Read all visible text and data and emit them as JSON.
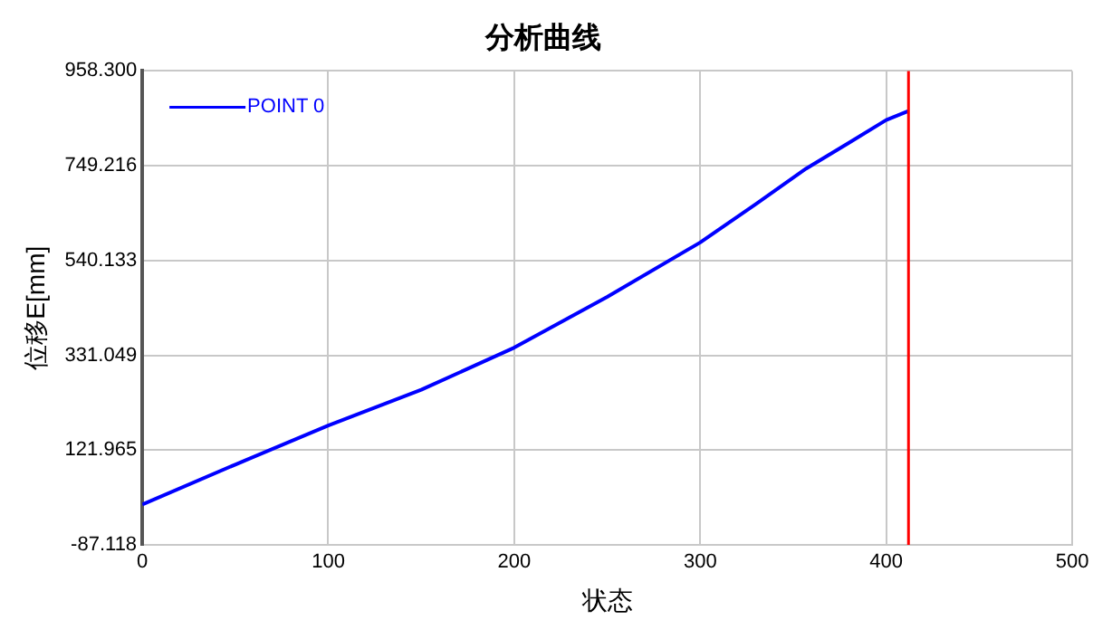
{
  "chart_data": {
    "type": "line",
    "title": "分析曲线",
    "xlabel": "状态",
    "ylabel": "位移E[mm]",
    "xlim": [
      0,
      500
    ],
    "xticks": [
      0,
      100,
      200,
      300,
      400,
      500
    ],
    "ylim": [
      -87.118,
      958.3
    ],
    "yticks": [
      {
        "value": -87.118,
        "label": "-87.118"
      },
      {
        "value": 121.965,
        "label": "121.965"
      },
      {
        "value": 331.049,
        "label": "331.049"
      },
      {
        "value": 540.133,
        "label": "540.133"
      },
      {
        "value": 749.216,
        "label": "749.216"
      },
      {
        "value": 958.3,
        "label": "958.300"
      }
    ],
    "x": [
      0,
      50,
      100,
      150,
      200,
      250,
      300,
      330,
      357,
      380,
      400,
      412
    ],
    "series": [
      {
        "name": "POINT 0",
        "color": "#0000ff",
        "values": [
          2,
          90,
          176,
          255,
          348,
          460,
          580,
          665,
          743,
          800,
          850,
          870
        ]
      }
    ],
    "ref_lines": [
      {
        "axis": "x",
        "value": 412,
        "color": "#ff0000"
      }
    ],
    "grid": true,
    "legend": "top left",
    "marker": "none",
    "line_style": "solid"
  }
}
